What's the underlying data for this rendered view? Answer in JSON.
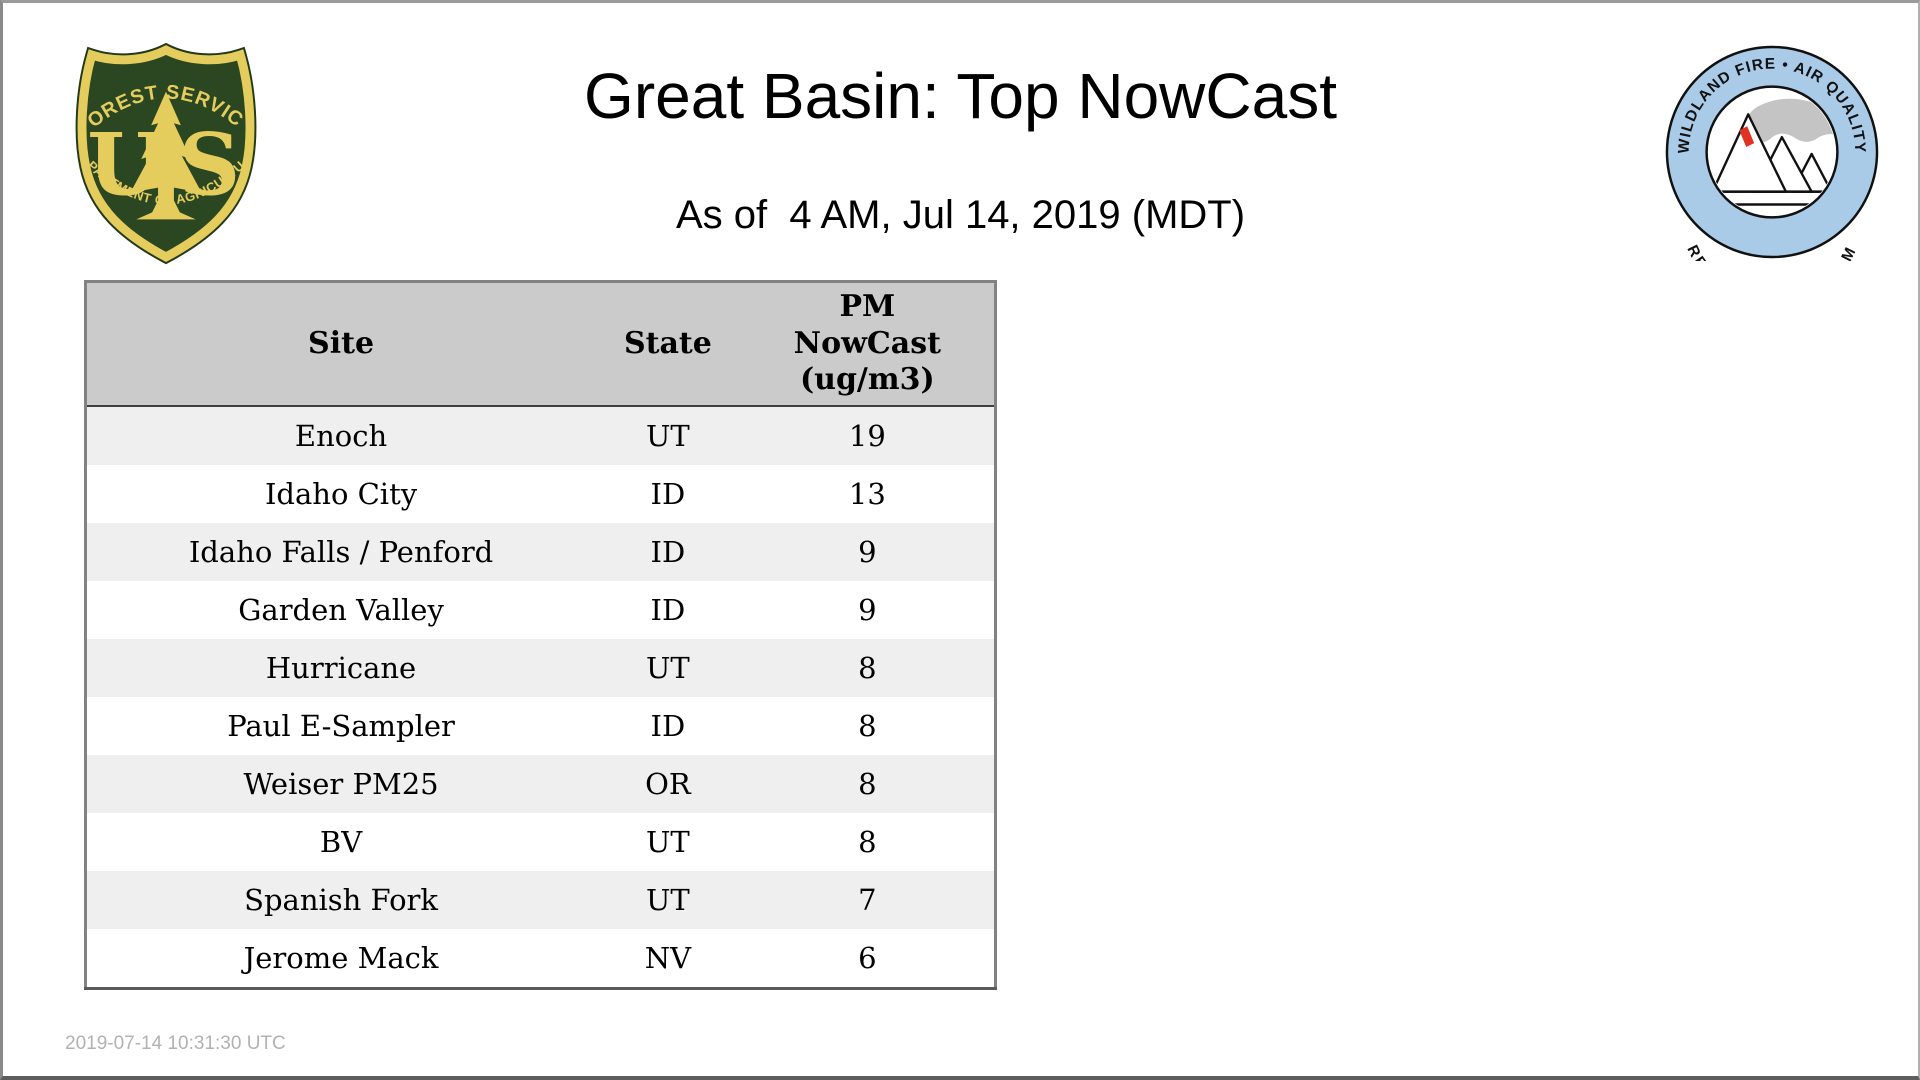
{
  "page": {
    "title": "Great Basin: Top NowCast",
    "subtitle": "As of  4 AM, Jul 14, 2019 (MDT)",
    "footer_timestamp": "2019-07-14 10:31:30 UTC"
  },
  "logos": {
    "usfs": {
      "top_text": "FOREST SERVICE",
      "monogram": "U S",
      "bottom_text": "DEPARTMENT OF AGRICULTURE",
      "green": "#2b4722",
      "gold": "#e5cd5d"
    },
    "aqrp": {
      "top_text": "WILDLAND FIRE • AIR QUALITY",
      "bottom_text": "RESPONSE PROGRAM",
      "ring_color": "#a9cbe8",
      "smoke_color": "#c4c4c4",
      "flame_color": "#e03222",
      "outline_color": "#111111"
    }
  },
  "table": {
    "headers": [
      "Site",
      "State",
      "PM NowCast (ug/m3)"
    ],
    "rows": [
      {
        "site": "Enoch",
        "state": "UT",
        "value": "19"
      },
      {
        "site": "Idaho City",
        "state": "ID",
        "value": "13"
      },
      {
        "site": "Idaho Falls / Penford",
        "state": "ID",
        "value": "9"
      },
      {
        "site": "Garden Valley",
        "state": "ID",
        "value": "9"
      },
      {
        "site": "Hurricane",
        "state": "UT",
        "value": "8"
      },
      {
        "site": "Paul E-Sampler",
        "state": "ID",
        "value": "8"
      },
      {
        "site": "Weiser PM25",
        "state": "OR",
        "value": "8"
      },
      {
        "site": "BV",
        "state": "UT",
        "value": "8"
      },
      {
        "site": "Spanish Fork",
        "state": "UT",
        "value": "7"
      },
      {
        "site": "Jerome Mack",
        "state": "NV",
        "value": "6"
      }
    ],
    "colors": {
      "header_bg": "#cbcbcb",
      "stripe_bg": "#efefef",
      "outer_border": "#828282",
      "header_underline": "#3f3f3f"
    }
  },
  "chart_data": {
    "type": "table",
    "title": "Great Basin: Top NowCast",
    "subtitle": "As of  4 AM, Jul 14, 2019 (MDT)",
    "columns": [
      "Site",
      "State",
      "PM NowCast (ug/m3)"
    ],
    "categories": [
      "Enoch",
      "Idaho City",
      "Idaho Falls / Penford",
      "Garden Valley",
      "Hurricane",
      "Paul E-Sampler",
      "Weiser PM25",
      "BV",
      "Spanish Fork",
      "Jerome Mack"
    ],
    "states": [
      "UT",
      "ID",
      "ID",
      "ID",
      "UT",
      "ID",
      "OR",
      "UT",
      "UT",
      "NV"
    ],
    "values": [
      19,
      13,
      9,
      9,
      8,
      8,
      8,
      8,
      7,
      6
    ]
  }
}
